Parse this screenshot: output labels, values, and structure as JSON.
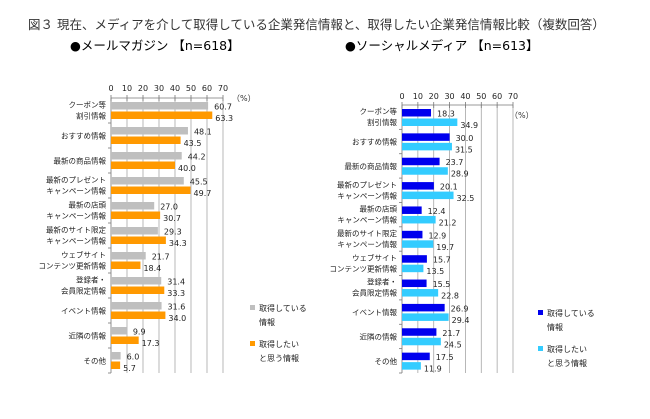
{
  "title": "図３ 現在、メディアを介して取得している企業発信情報と、取得したい企業発信情報比較（複数回答）",
  "unit_label": "（%）",
  "chart_data": [
    {
      "type": "bar",
      "orientation": "horizontal",
      "title": "●メールマガジン 【n=618】",
      "xlim": [
        0,
        70
      ],
      "ticks": [
        0,
        10,
        20,
        30,
        40,
        50,
        60,
        70
      ],
      "categories": [
        [
          "クーポン等",
          "割引情報"
        ],
        [
          "おすすめ情報"
        ],
        [
          "最新の商品情報"
        ],
        [
          "最新のプレゼント",
          "キャンペーン情報"
        ],
        [
          "最新の店頭",
          "キャンペーン情報"
        ],
        [
          "最新のサイト限定",
          "キャンペーン情報"
        ],
        [
          "ウェブサイト",
          "コンテンツ更新情報"
        ],
        [
          "登録者・",
          "会員限定情報"
        ],
        [
          "イベント情報"
        ],
        [
          "近隣の情報"
        ],
        [
          "その他"
        ]
      ],
      "series": [
        {
          "name": [
            "取得している",
            "情報"
          ],
          "color": "#bfbfbf",
          "values": [
            60.7,
            48.1,
            44.2,
            45.5,
            27.0,
            29.3,
            21.7,
            31.4,
            31.6,
            9.9,
            6.0
          ]
        },
        {
          "name": [
            "取得したい",
            "と思う情報"
          ],
          "color": "#ff9900",
          "values": [
            63.3,
            43.5,
            40.0,
            49.7,
            30.7,
            34.3,
            18.4,
            33.3,
            34.0,
            17.3,
            5.7
          ]
        }
      ],
      "legend": "right"
    },
    {
      "type": "bar",
      "orientation": "horizontal",
      "title": "●ソーシャルメディア 【n=613】",
      "xlim": [
        0,
        70
      ],
      "ticks": [
        0,
        10,
        20,
        30,
        40,
        50,
        60,
        70
      ],
      "categories": [
        [
          "クーポン等",
          "割引情報"
        ],
        [
          "おすすめ情報"
        ],
        [
          "最新の商品情報"
        ],
        [
          "最新のプレゼント",
          "キャンペーン情報"
        ],
        [
          "最新の店頭",
          "キャンペーン情報"
        ],
        [
          "最新のサイト限定",
          "キャンペーン情報"
        ],
        [
          "ウェブサイト",
          "コンテンツ更新情報"
        ],
        [
          "登録者・",
          "会員限定情報"
        ],
        [
          "イベント情報"
        ],
        [
          "近隣の情報"
        ],
        [
          "その他"
        ]
      ],
      "series": [
        {
          "name": [
            "取得している",
            "情報"
          ],
          "color": "#0000ee",
          "values": [
            18.3,
            30.0,
            23.7,
            20.1,
            12.4,
            12.9,
            15.7,
            15.5,
            26.9,
            21.7,
            17.5
          ]
        },
        {
          "name": [
            "取得したい",
            "と思う情報"
          ],
          "color": "#33ccff",
          "values": [
            34.9,
            31.5,
            28.9,
            32.5,
            21.2,
            19.7,
            13.5,
            22.8,
            29.4,
            24.5,
            11.9
          ]
        }
      ],
      "legend": "right"
    }
  ]
}
